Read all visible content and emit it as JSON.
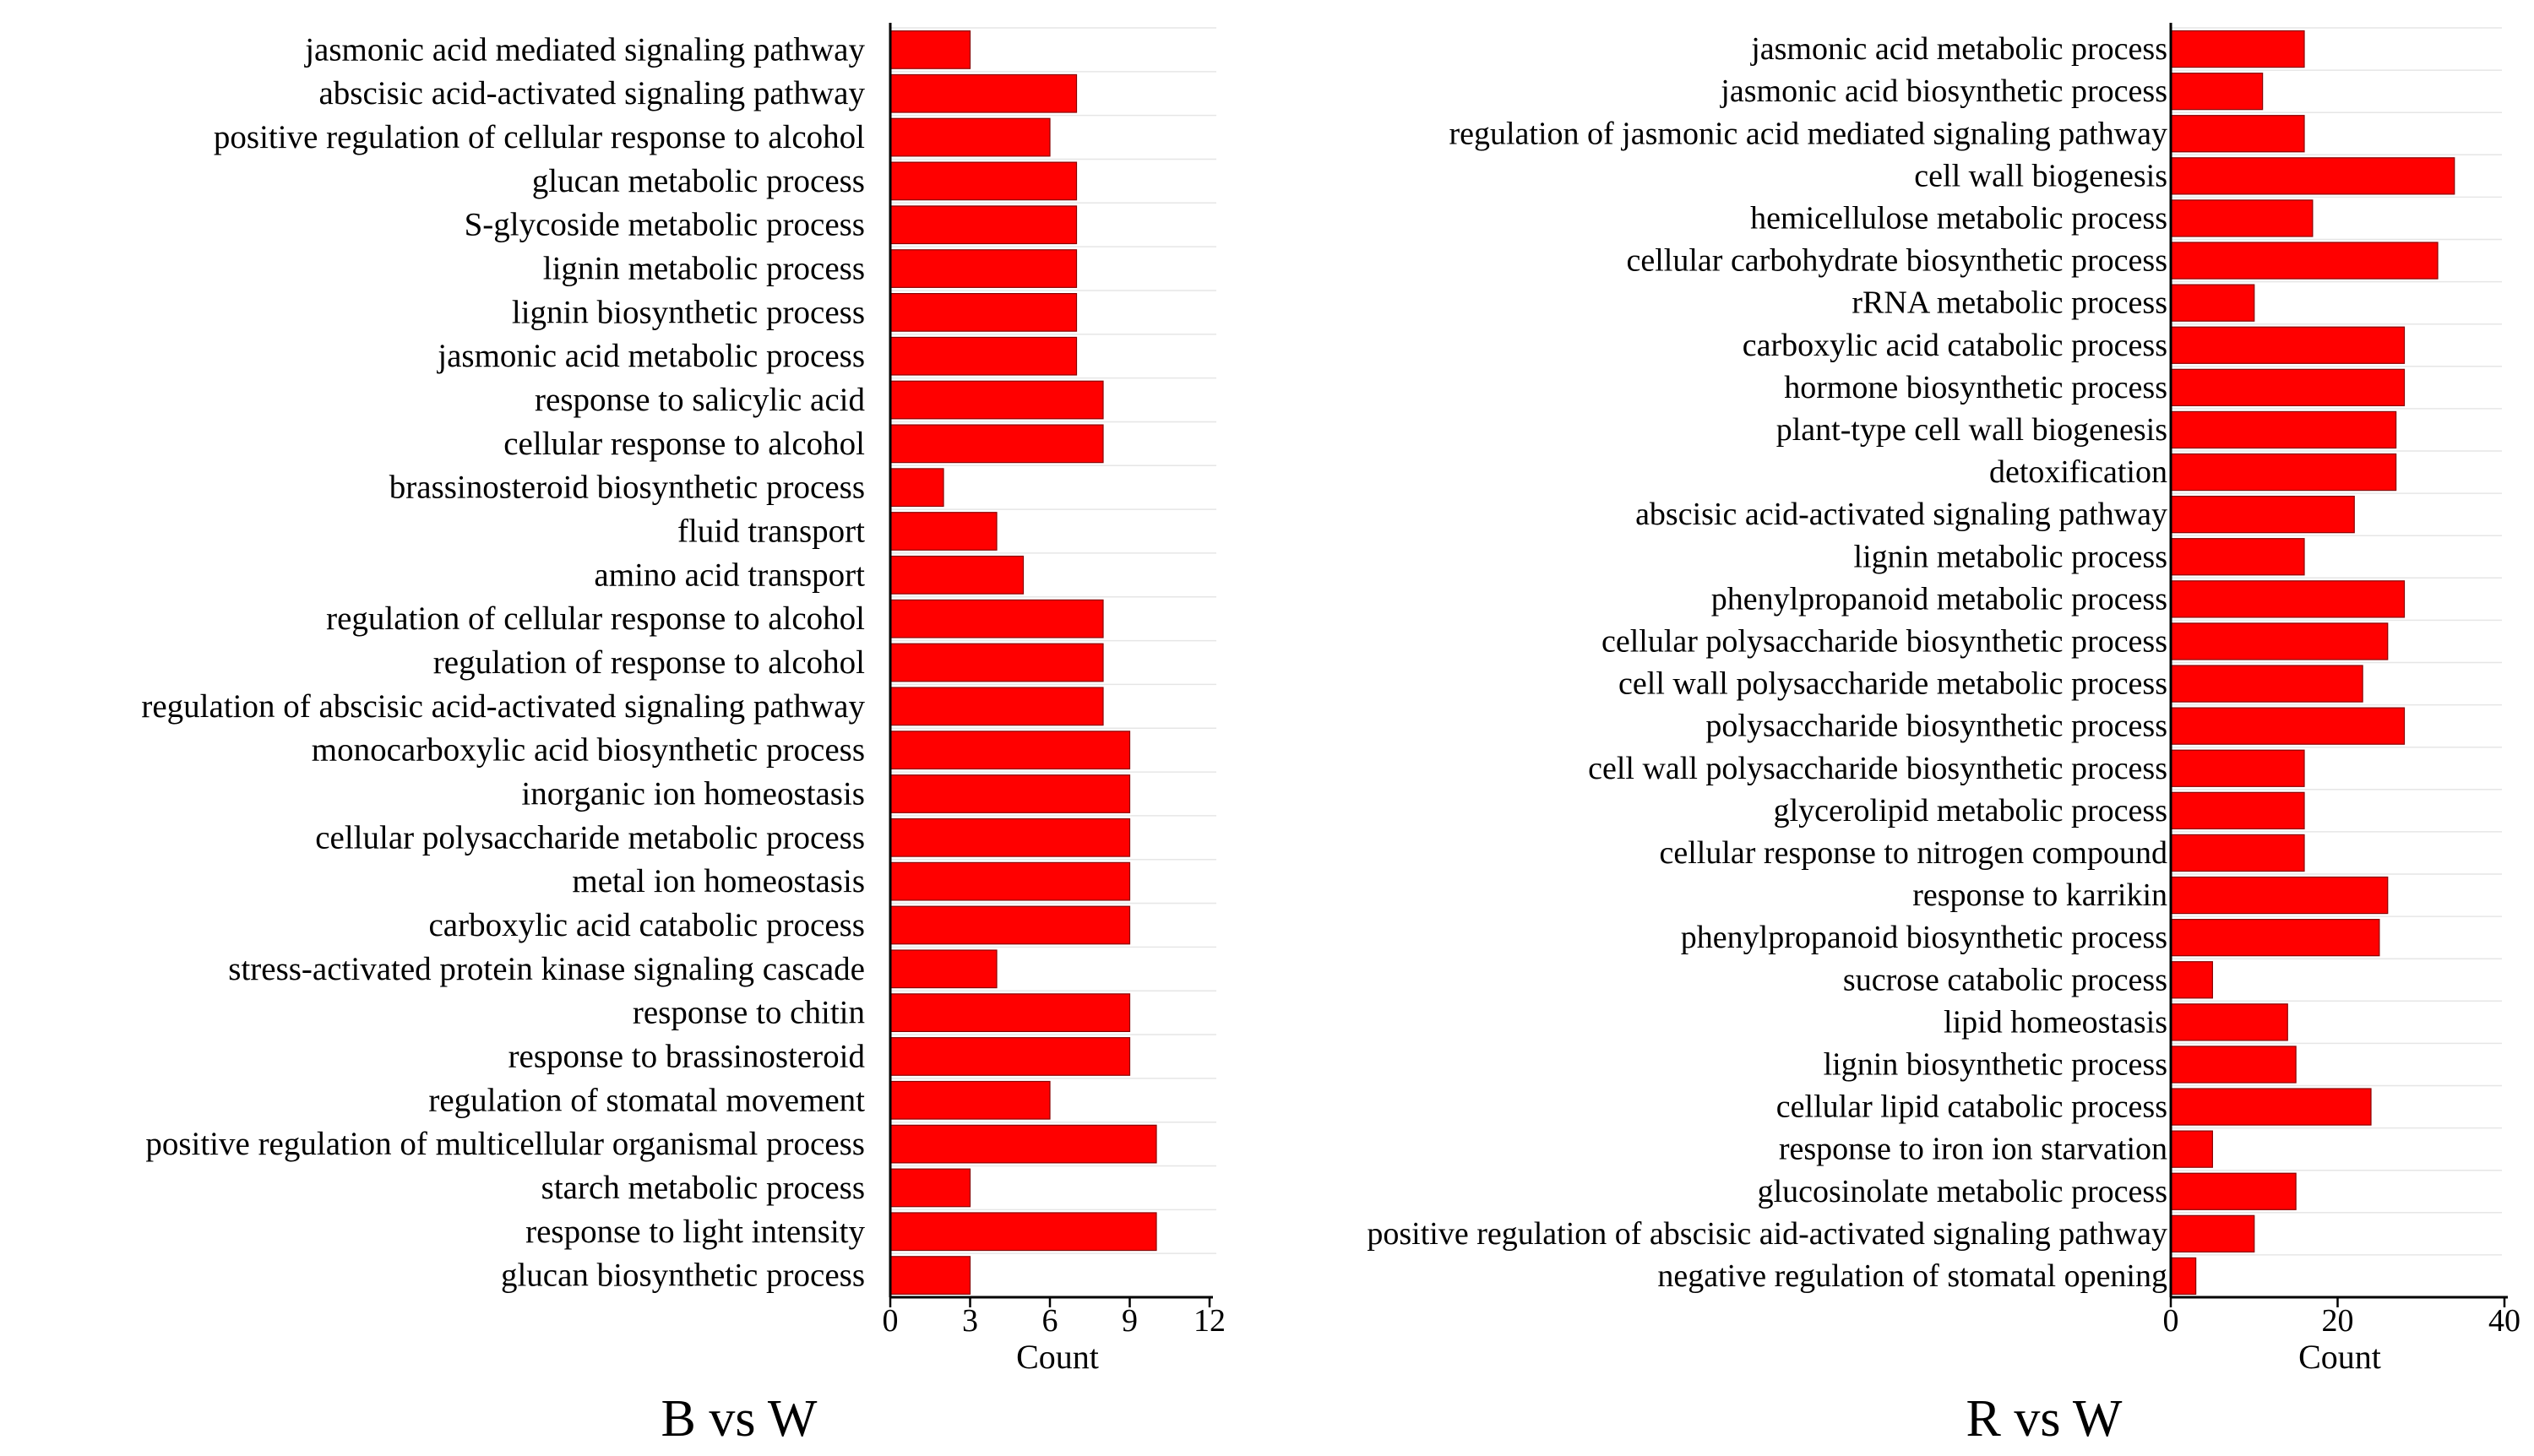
{
  "colors": {
    "bar": "#ff0000",
    "bar_edge": "#8a0000",
    "axis": "#000000",
    "grid": "#e6e6e6"
  },
  "chart_data": [
    {
      "type": "bar",
      "orientation": "horizontal",
      "title": "B vs W",
      "xlabel": "Count",
      "xlim": [
        0,
        12
      ],
      "xticks": [
        0,
        3,
        6,
        9,
        12
      ],
      "grid": true,
      "categories": [
        "jasmonic acid mediated signaling pathway",
        "abscisic acid-activated signaling pathway",
        "positive regulation of cellular response to alcohol",
        "glucan metabolic process",
        "S-glycoside metabolic process",
        "lignin metabolic process",
        "lignin biosynthetic process",
        "jasmonic acid metabolic process",
        "response to salicylic acid",
        "cellular response to alcohol",
        "brassinosteroid biosynthetic process",
        "fluid transport",
        "amino acid transport",
        "regulation of cellular response to alcohol",
        "regulation of response to alcohol",
        "regulation of abscisic acid-activated signaling pathway",
        "monocarboxylic acid biosynthetic process",
        "inorganic ion homeostasis",
        "cellular polysaccharide metabolic process",
        "metal ion homeostasis",
        "carboxylic acid catabolic process",
        "stress-activated protein kinase signaling cascade",
        "response to chitin",
        "response to brassinosteroid",
        "regulation of stomatal movement",
        "positive regulation of multicellular organismal process",
        "starch metabolic process",
        "response to light intensity",
        "glucan biosynthetic process"
      ],
      "values": [
        3,
        7,
        6,
        7,
        7,
        7,
        7,
        7,
        8,
        8,
        2,
        4,
        5,
        8,
        8,
        8,
        9,
        9,
        9,
        9,
        9,
        4,
        9,
        9,
        6,
        10,
        3,
        10,
        3
      ]
    },
    {
      "type": "bar",
      "orientation": "horizontal",
      "title": "R vs W",
      "xlabel": "Count",
      "xlim": [
        0,
        40
      ],
      "xticks": [
        0,
        20,
        40
      ],
      "grid": true,
      "categories": [
        "jasmonic acid metabolic process",
        "jasmonic acid biosynthetic process",
        "regulation of jasmonic acid mediated signaling pathway",
        "cell wall biogenesis",
        "hemicellulose metabolic process",
        "cellular carbohydrate biosynthetic process",
        "rRNA metabolic process",
        "carboxylic acid catabolic process",
        "hormone biosynthetic process",
        "plant-type cell wall biogenesis",
        "detoxification",
        "abscisic acid-activated signaling pathway",
        "lignin metabolic process",
        "phenylpropanoid metabolic process",
        "cellular polysaccharide biosynthetic process",
        "cell wall polysaccharide metabolic process",
        "polysaccharide biosynthetic process",
        "cell wall polysaccharide biosynthetic process",
        "glycerolipid metabolic process",
        "cellular response to nitrogen compound",
        "response to karrikin",
        "phenylpropanoid biosynthetic process",
        "sucrose catabolic process",
        "lipid homeostasis",
        "lignin biosynthetic process",
        "cellular lipid catabolic process",
        "response to iron ion starvation",
        "glucosinolate metabolic process",
        "positive regulation of abscisic aid-activated signaling pathway",
        "negative regulation of stomatal opening"
      ],
      "values": [
        16,
        11,
        16,
        34,
        17,
        32,
        10,
        28,
        28,
        27,
        27,
        22,
        16,
        28,
        26,
        23,
        28,
        16,
        16,
        16,
        26,
        25,
        5,
        14,
        15,
        24,
        5,
        15,
        10,
        3
      ]
    }
  ]
}
